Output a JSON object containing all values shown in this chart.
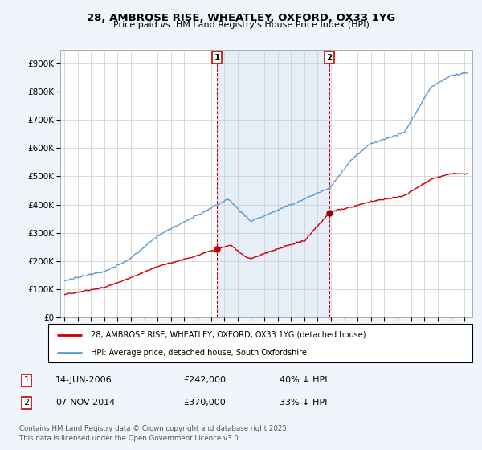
{
  "title": "28, AMBROSE RISE, WHEATLEY, OXFORD, OX33 1YG",
  "subtitle": "Price paid vs. HM Land Registry's House Price Index (HPI)",
  "ylim": [
    0,
    950000
  ],
  "yticks": [
    0,
    100000,
    200000,
    300000,
    400000,
    500000,
    600000,
    700000,
    800000,
    900000
  ],
  "ytick_labels": [
    "£0",
    "£100K",
    "£200K",
    "£300K",
    "£400K",
    "£500K",
    "£600K",
    "£700K",
    "£800K",
    "£900K"
  ],
  "hpi_color": "#5b9bd5",
  "price_color": "#cc0000",
  "shade_color": "#dce8f5",
  "legend_line1": "28, AMBROSE RISE, WHEATLEY, OXFORD, OX33 1YG (detached house)",
  "legend_line2": "HPI: Average price, detached house, South Oxfordshire",
  "footnote": "Contains HM Land Registry data © Crown copyright and database right 2025.\nThis data is licensed under the Open Government Licence v3.0.",
  "background_color": "#f0f4fb",
  "plot_bg_color": "#ffffff",
  "grid_color": "#cccccc",
  "sale1_year": 2006,
  "sale1_month": 6,
  "sale1_price": 242000,
  "sale2_year": 2014,
  "sale2_month": 11,
  "sale2_price": 370000
}
